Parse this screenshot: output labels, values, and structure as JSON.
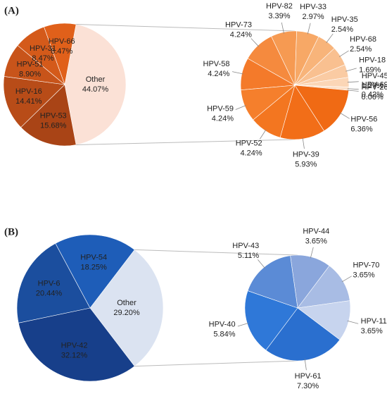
{
  "chart_data": [
    {
      "type": "pie",
      "panel": "(A)",
      "categories": [
        "Other",
        "HPV-53",
        "HPV-16",
        "HPV-51",
        "HPV-31",
        "HPV-66"
      ],
      "values": [
        44.07,
        15.68,
        14.41,
        8.9,
        8.47,
        8.47
      ],
      "value_labels": [
        "44.07%",
        "15.68%",
        "14.41%",
        "8.90%",
        "8.47%",
        "8.47%"
      ],
      "colors": [
        "#fbe1d6",
        "#a94416",
        "#b84c18",
        "#c8541a",
        "#d45a1a",
        "#e0601a"
      ],
      "detail": {
        "categories": [
          "HPV-58",
          "HPV-73",
          "HPV-82",
          "HPV-33",
          "HPV-35",
          "HPV-68",
          "HPV-18",
          "HPV-45",
          "HPV-69",
          "HPV-26",
          "HPV-56",
          "HPV-39",
          "HPV-52",
          "HPV-59"
        ],
        "values": [
          4.24,
          4.24,
          3.39,
          2.97,
          2.54,
          2.54,
          1.69,
          1.27,
          0.42,
          0.0,
          6.36,
          5.93,
          4.24,
          4.24
        ],
        "value_labels": [
          "4.24%",
          "4.24%",
          "3.39%",
          "2.97%",
          "2.54%",
          "2.54%",
          "1.69%",
          "1.27%",
          "0.42%",
          "0.00%",
          "6.36%",
          "5.93%",
          "4.24%",
          "4.24%"
        ],
        "colors": [
          "#f47a2a",
          "#f58a3e",
          "#f69a52",
          "#f7a866",
          "#f8b47a",
          "#f9c090",
          "#facba3",
          "#fbd6b6",
          "#fcdfc6",
          "#fde8d6",
          "#f06a14",
          "#f26e18",
          "#f37620",
          "#f57f2c"
        ]
      }
    },
    {
      "type": "pie",
      "panel": "(B)",
      "categories": [
        "Other",
        "HPV-42",
        "HPV-6",
        "HPV-54"
      ],
      "values": [
        29.2,
        32.12,
        20.44,
        18.25
      ],
      "value_labels": [
        "29.20%",
        "32.12%",
        "20.44%",
        "18.25%"
      ],
      "colors": [
        "#dbe3f1",
        "#173f8a",
        "#1b4e9e",
        "#1e5db8"
      ],
      "detail": {
        "categories": [
          "HPV-44",
          "HPV-70",
          "HPV-11",
          "HPV-61",
          "HPV-40",
          "HPV-43"
        ],
        "values": [
          3.65,
          3.65,
          3.65,
          7.3,
          5.84,
          5.11
        ],
        "value_labels": [
          "3.65%",
          "3.65%",
          "3.65%",
          "7.30%",
          "5.84%",
          "5.11%"
        ],
        "colors": [
          "#8aa6dc",
          "#a8bce4",
          "#c7d4ee",
          "#2a6fcf",
          "#2f78d8",
          "#5b8bd6"
        ]
      }
    }
  ]
}
